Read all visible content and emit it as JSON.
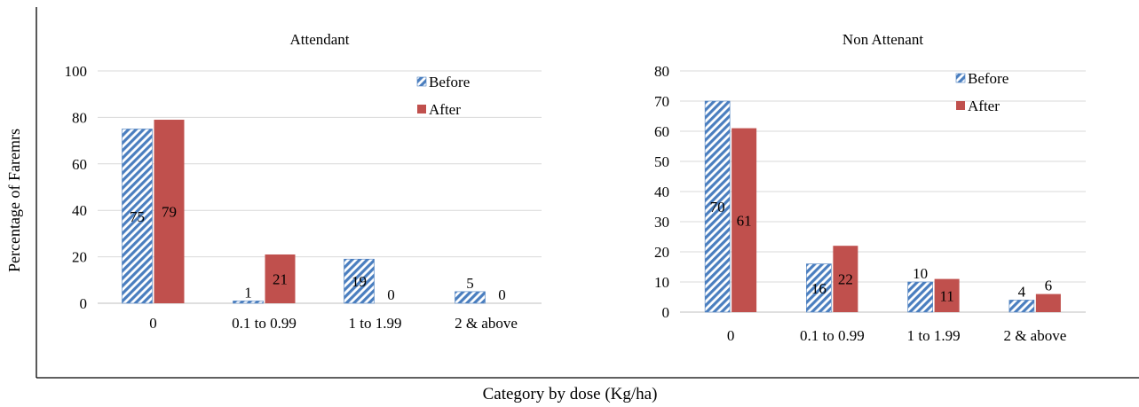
{
  "figure": {
    "ylabel": "Percentage of Faremrs",
    "xlabel": "Category by dose (Kg/ha)"
  },
  "colors": {
    "before": "#4a7ebf",
    "before_pattern": "diagonal-stripe",
    "after": "#c0504d",
    "grid": "#d9d9d9",
    "axis": "#000000"
  },
  "chart_data": [
    {
      "type": "bar",
      "title": "Attendant",
      "categories": [
        "0",
        "0.1 to 0.99",
        "1 to 1.99",
        "2 & above"
      ],
      "series": [
        {
          "name": "Before",
          "values": [
            75,
            1,
            19,
            5
          ]
        },
        {
          "name": "After",
          "values": [
            79,
            21,
            0,
            0
          ]
        }
      ],
      "ylim": [
        0,
        100
      ],
      "yticks": [
        0,
        20,
        40,
        60,
        80,
        100
      ],
      "grid": true,
      "legend": "top-right",
      "data_labels": true
    },
    {
      "type": "bar",
      "title": "Non Attenant",
      "categories": [
        "0",
        "0.1 to 0.99",
        "1 to 1.99",
        "2 & above"
      ],
      "series": [
        {
          "name": "Before",
          "values": [
            70,
            16,
            10,
            4
          ]
        },
        {
          "name": "After",
          "values": [
            61,
            22,
            11,
            6
          ]
        }
      ],
      "ylim": [
        0,
        80
      ],
      "yticks": [
        0,
        10,
        20,
        30,
        40,
        50,
        60,
        70,
        80
      ],
      "grid": true,
      "legend": "top-right",
      "data_labels": true
    }
  ]
}
